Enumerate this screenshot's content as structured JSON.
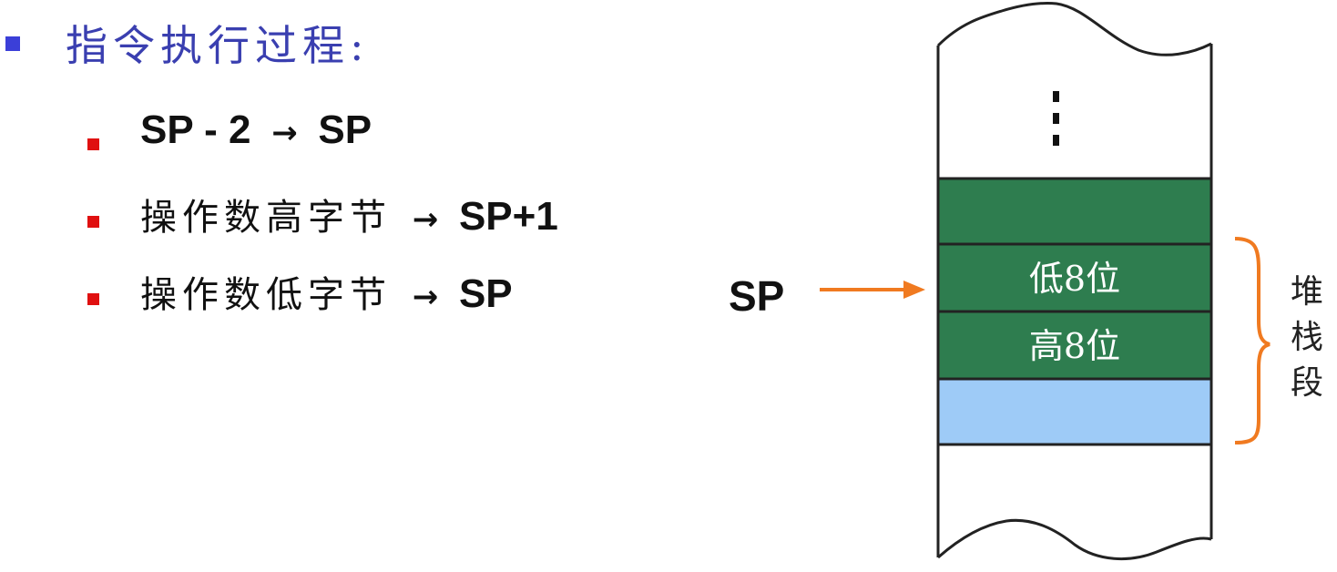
{
  "heading": "指令执行过程:",
  "steps": [
    {
      "bold_left": "SP - 2",
      "arrow": "→",
      "right": "SP"
    },
    {
      "text": "操作数高字节",
      "arrow": "→",
      "right": "SP+1"
    },
    {
      "text": "操作数低字节",
      "arrow": "→",
      "right": "SP"
    }
  ],
  "diagram": {
    "pointer_label": "SP",
    "ellipsis": "⋮",
    "cells": [
      {
        "label": "",
        "color": "#2e7d4f"
      },
      {
        "label": "低8位",
        "color": "#2e7d4f"
      },
      {
        "label": "高8位",
        "color": "#2e7d4f"
      },
      {
        "label": "",
        "color": "#9ecbf7"
      }
    ],
    "segment_label": "堆栈段",
    "arrow_color": "#f07a20",
    "brace_color": "#f07a20"
  },
  "colors": {
    "heading": "#3a3fb0",
    "main_bullet": "#3b3fd8",
    "sub_bullet": "#e01010"
  }
}
